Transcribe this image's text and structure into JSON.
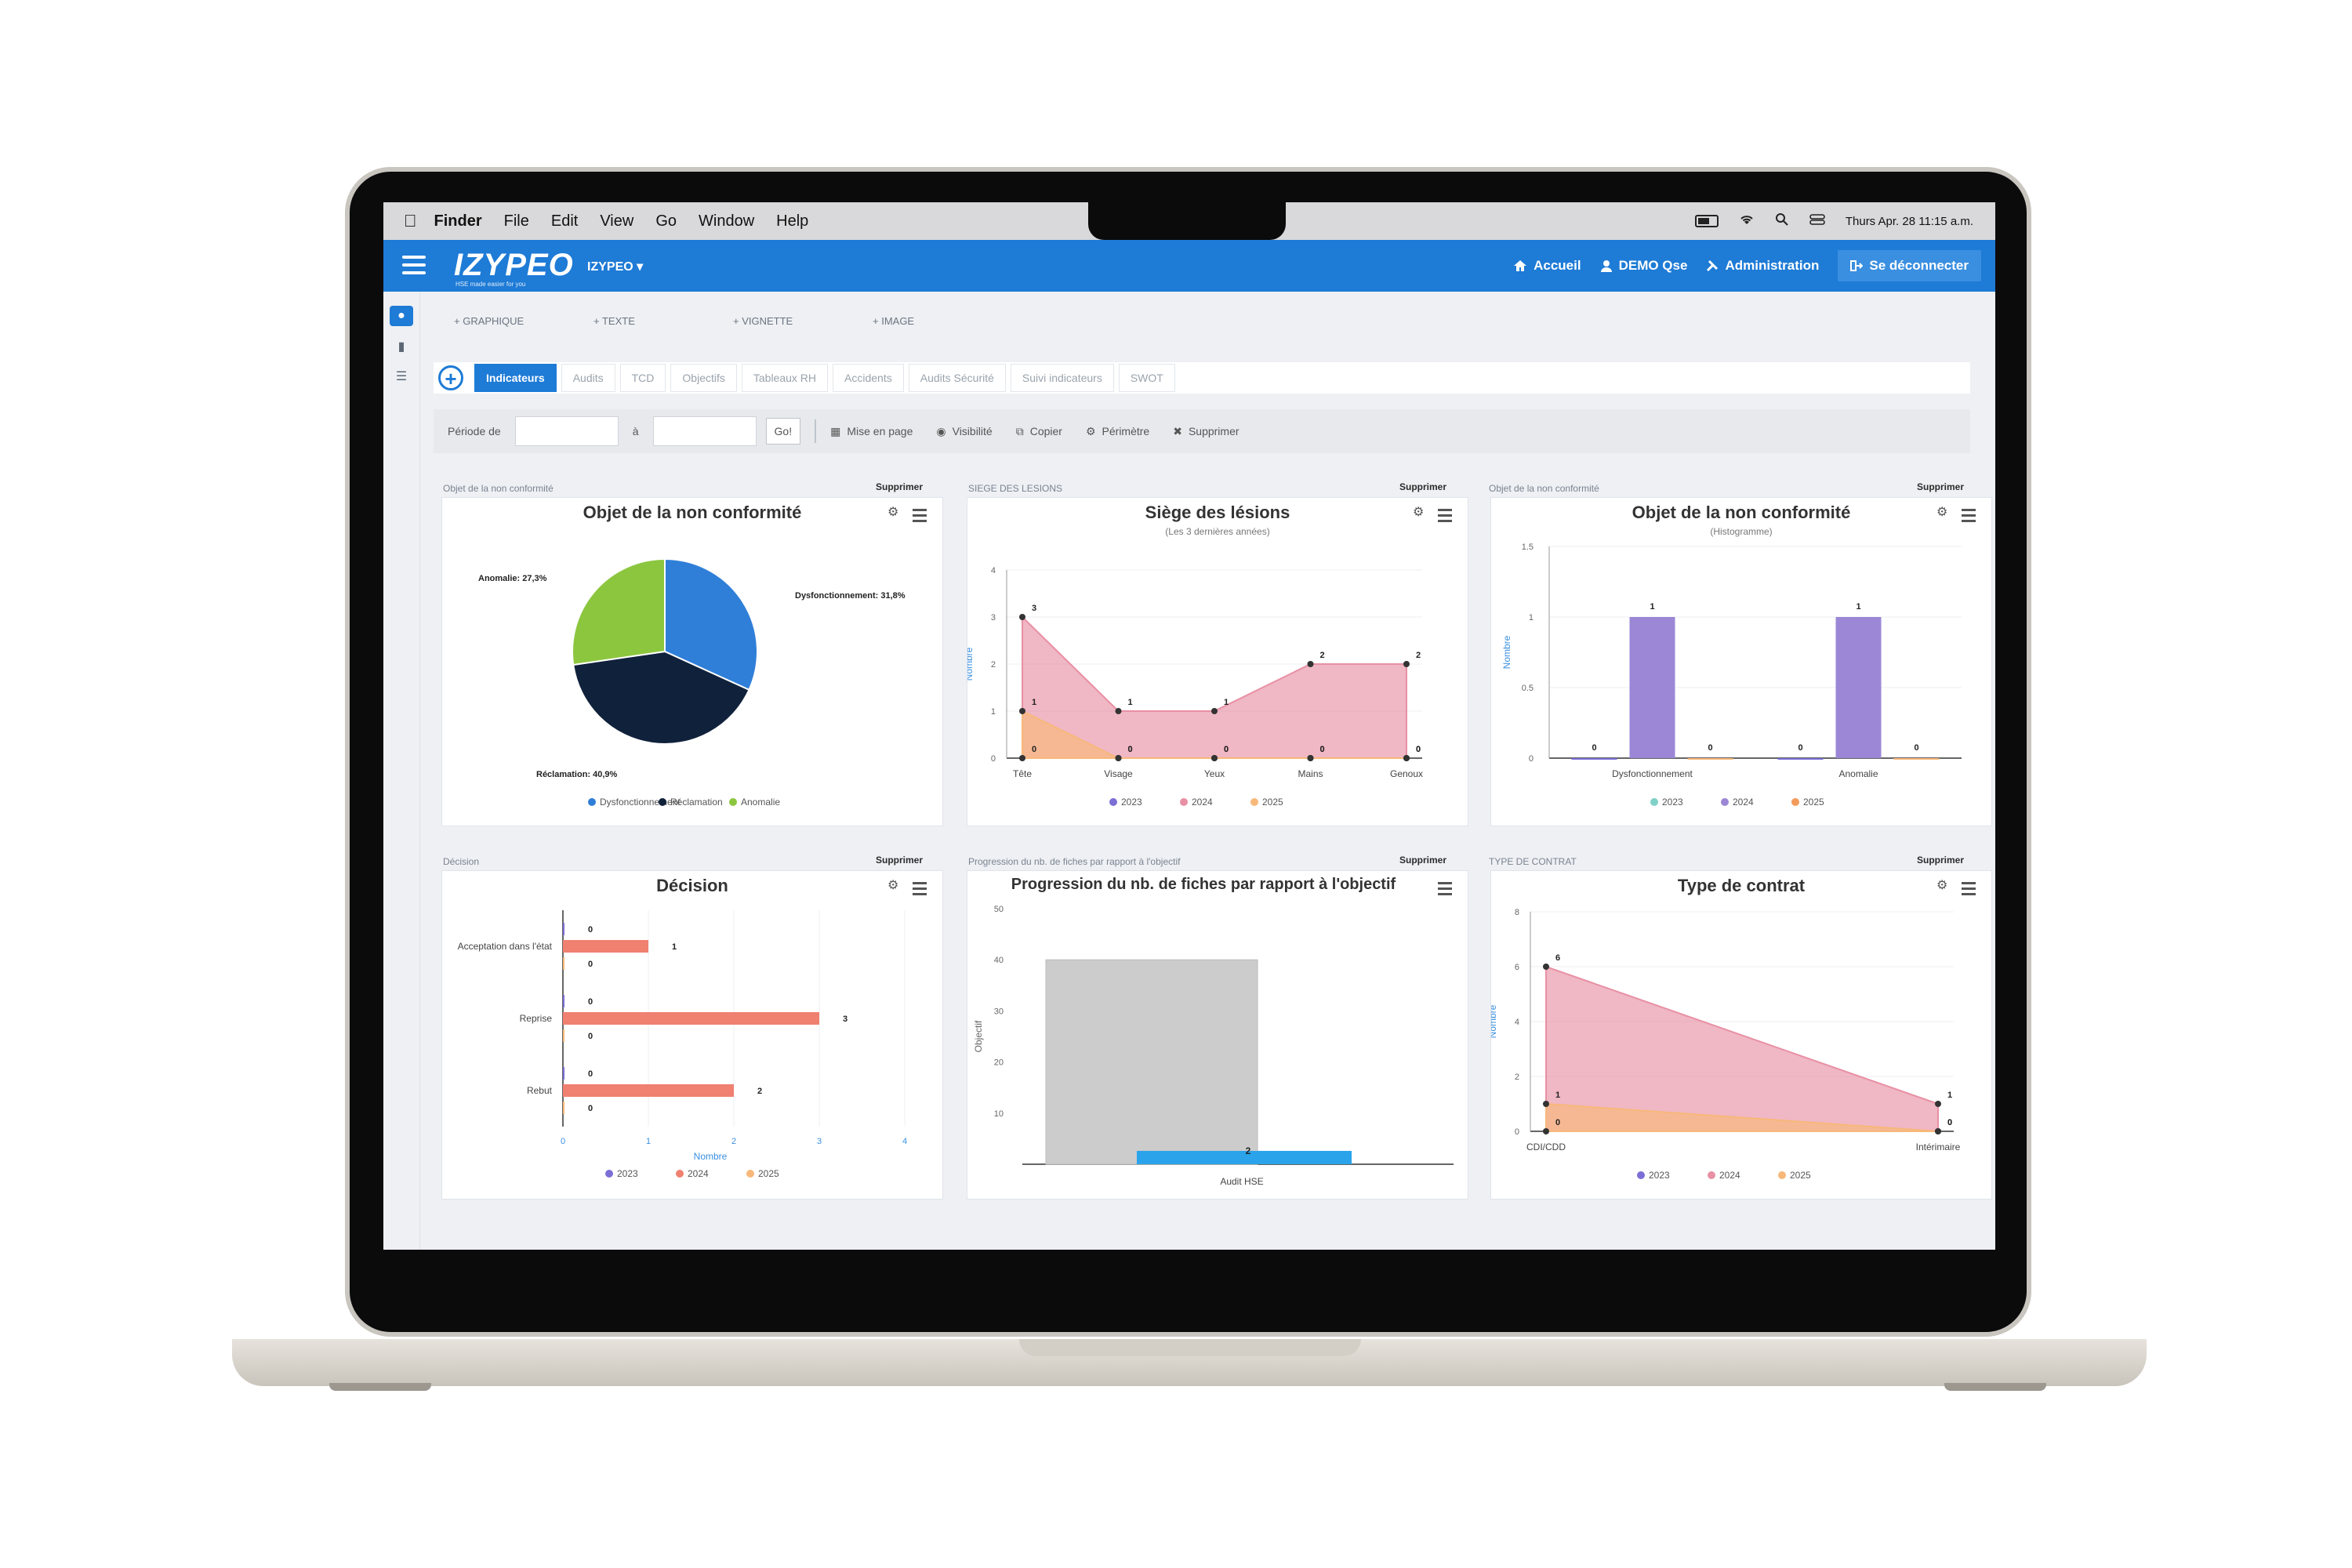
{
  "menubar": {
    "items": [
      "Finder",
      "File",
      "Edit",
      "View",
      "Go",
      "Window",
      "Help"
    ],
    "clock": "Thurs Apr. 28 11:15 a.m."
  },
  "header": {
    "logo": "IZYPEO",
    "logo_tagline": "HSE made easier for you",
    "app_selector": "IZYPEO ▾",
    "nav": [
      "Accueil",
      "DEMO Qse",
      "Administration",
      "Se déconnecter"
    ]
  },
  "add_row": [
    "+ GRAPHIQUE",
    "+ TEXTE",
    "+ VIGNETTE",
    "+ IMAGE"
  ],
  "tabs": [
    "Indicateurs",
    "Audits",
    "TCD",
    "Objectifs",
    "Tableaux RH",
    "Accidents",
    "Audits Sécurité",
    "Suivi indicateurs",
    "SWOT"
  ],
  "toolbar": {
    "period_label": "Période de",
    "to_label": "à",
    "go": "Go!",
    "actions": [
      "Mise en page",
      "Visibilité",
      "Copier",
      "Périmètre",
      "Supprimer"
    ]
  },
  "widgets": [
    {
      "label": "Objet de la non conformité",
      "delete": "Supprimer"
    },
    {
      "label": "SIEGE DES LESIONS",
      "delete": "Supprimer"
    },
    {
      "label": "Objet de la non conformité",
      "delete": "Supprimer"
    },
    {
      "label": "Décision",
      "delete": "Supprimer"
    },
    {
      "label": "Progression du nb. de fiches par rapport à l'objectif",
      "delete": "Supprimer"
    },
    {
      "label": "TYPE DE CONTRAT",
      "delete": "Supprimer"
    }
  ],
  "colors": {
    "blue": "#2f7fd8",
    "navy": "#10213b",
    "green": "#8cc63f",
    "s2023": "#7b6fd6",
    "s2024": "#e890a4",
    "s2025": "#f7b87a",
    "bar_purple": "#9b87d6",
    "bar_salmon": "#f08070",
    "gray_bar": "#cccccc",
    "cyan_bar": "#2aa3ea"
  },
  "chart_data": [
    {
      "type": "pie",
      "title": "Objet de la non conformité",
      "categories": [
        "Dysfonctionnement",
        "Réclamation",
        "Anomalie"
      ],
      "values": [
        31.8,
        40.9,
        27.3
      ],
      "labels": [
        "Dysfonctionnement: 31,8%",
        "Réclamation: 40,9%",
        "Anomalie: 27,3%"
      ],
      "legend": [
        "Dysfonctionnement",
        "Réclamation",
        "Anomalie"
      ]
    },
    {
      "type": "area",
      "title": "Siège des lésions",
      "subtitle": "(Les 3 dernières années)",
      "ylabel": "Nombre",
      "categories": [
        "Tête",
        "Visage",
        "Yeux",
        "Mains",
        "Genoux"
      ],
      "ylim": [
        0,
        4
      ],
      "yticks": [
        "0",
        "1",
        "2",
        "3",
        "4"
      ],
      "series": [
        {
          "name": "2023",
          "values": [
            0,
            0,
            0,
            0,
            0
          ]
        },
        {
          "name": "2024",
          "values": [
            3,
            1,
            1,
            2,
            2
          ]
        },
        {
          "name": "2025",
          "values": [
            1,
            0,
            0,
            0,
            0
          ]
        }
      ]
    },
    {
      "type": "bar",
      "title": "Objet de la non conformité",
      "subtitle": "(Histogramme)",
      "ylabel": "Nombre",
      "categories": [
        "Dysfonctionnement",
        "Anomalie"
      ],
      "ylim": [
        0,
        1.5
      ],
      "yticks": [
        "0",
        "0.5",
        "1",
        "1.5"
      ],
      "series": [
        {
          "name": "2023",
          "values": [
            0,
            0
          ]
        },
        {
          "name": "2024",
          "values": [
            1,
            1
          ]
        },
        {
          "name": "2025",
          "values": [
            0,
            0
          ]
        }
      ]
    },
    {
      "type": "bar",
      "title": "Décision",
      "xlabel": "Nombre",
      "categories": [
        "Acceptation dans l'état",
        "Reprise",
        "Rebut"
      ],
      "xlim": [
        0,
        4
      ],
      "xticks": [
        "0",
        "1",
        "2",
        "3",
        "4"
      ],
      "series": [
        {
          "name": "2023",
          "values": [
            0,
            0,
            0
          ]
        },
        {
          "name": "2024",
          "values": [
            1,
            3,
            2
          ]
        },
        {
          "name": "2025",
          "values": [
            0,
            0,
            0
          ]
        }
      ]
    },
    {
      "type": "bar",
      "title": "Progression du nb. de fiches par rapport à l'objectif",
      "ylabel": "Objectif",
      "categories": [
        "Audit HSE"
      ],
      "ylim": [
        0,
        50
      ],
      "yticks": [
        "0",
        "10",
        "20",
        "30",
        "40",
        "50"
      ],
      "series": [
        {
          "values": [
            40
          ]
        },
        {
          "values": [
            2
          ]
        }
      ],
      "data_label": "2"
    },
    {
      "type": "area",
      "title": "Type de contrat",
      "ylabel": "Nombre",
      "categories": [
        "CDI/CDD",
        "Intérimaire"
      ],
      "ylim": [
        0,
        8
      ],
      "yticks": [
        "0",
        "2",
        "4",
        "6",
        "8"
      ],
      "series": [
        {
          "name": "2023",
          "values": [
            0,
            0
          ]
        },
        {
          "name": "2024",
          "values": [
            6,
            1
          ]
        },
        {
          "name": "2025",
          "values": [
            1,
            0
          ]
        }
      ]
    }
  ]
}
